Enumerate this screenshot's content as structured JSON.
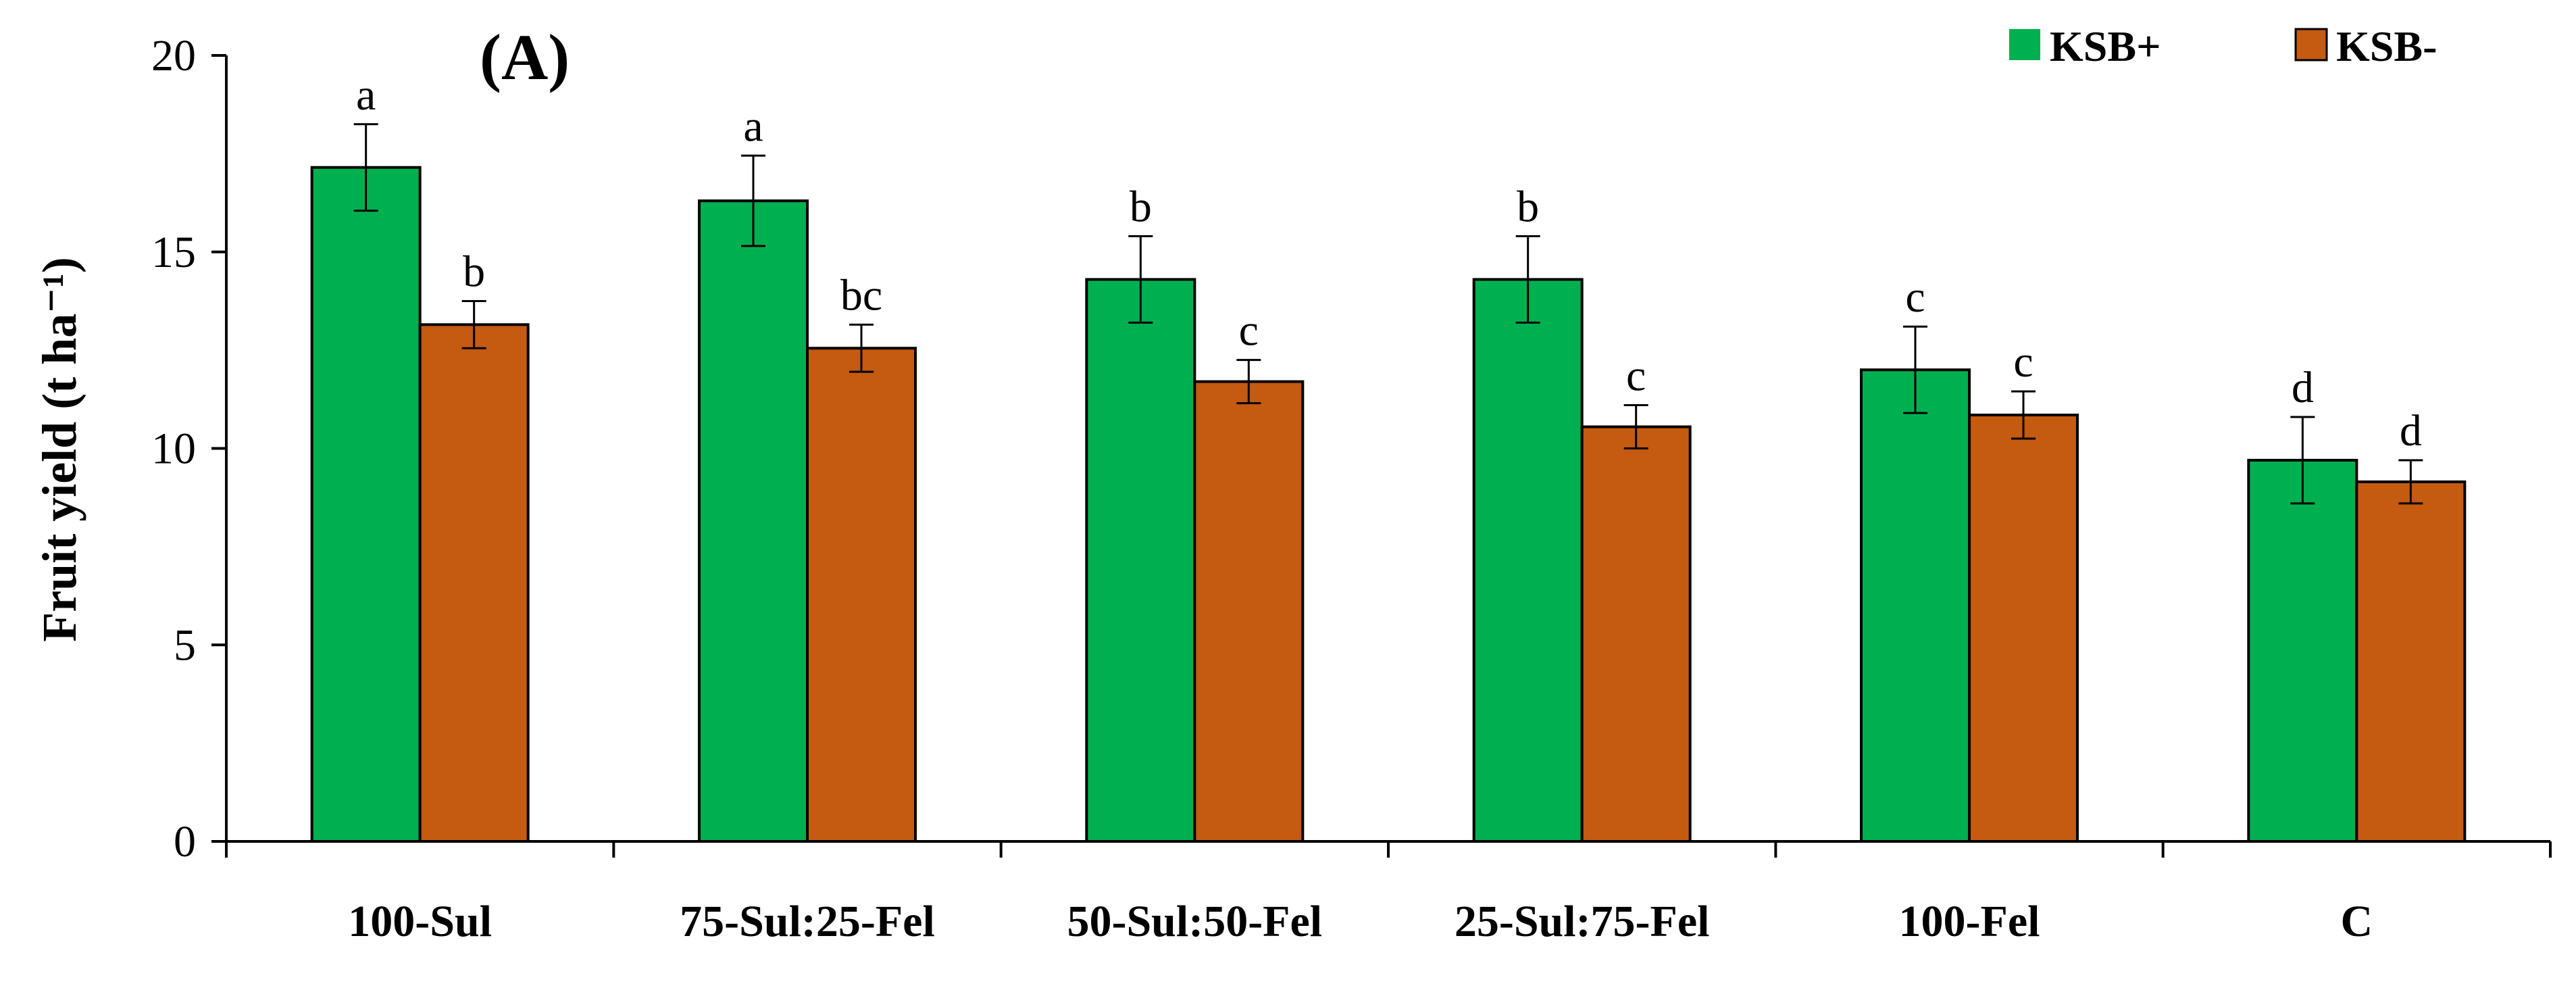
{
  "panel_label": "(A)",
  "chart_data": {
    "type": "bar",
    "title": "(A)",
    "xlabel": "",
    "ylabel": "Fruit yield (t ha⁻¹)",
    "ylim": [
      0,
      20
    ],
    "yticks": [
      0,
      5,
      10,
      15,
      20
    ],
    "categories": [
      "100-Sul",
      "75-Sul:25-Fel",
      "50-Sul:50-Fel",
      "25-Sul:75-Fel",
      "100-Fel",
      "C"
    ],
    "series": [
      {
        "name": "KSB+",
        "color": "#00B050",
        "values": [
          17.15,
          16.3,
          14.3,
          14.3,
          12.0,
          9.7
        ],
        "errors": [
          1.1,
          1.15,
          1.1,
          1.1,
          1.1,
          1.1
        ],
        "letters": [
          "a",
          "a",
          "b",
          "b",
          "c",
          "d"
        ]
      },
      {
        "name": "KSB-",
        "color": "#C55A11",
        "values": [
          13.15,
          12.55,
          11.7,
          10.55,
          10.85,
          9.15
        ],
        "errors": [
          0.6,
          0.6,
          0.55,
          0.55,
          0.6,
          0.55
        ],
        "letters": [
          "b",
          "bc",
          "c",
          "c",
          "c",
          "d"
        ]
      }
    ],
    "legend": {
      "position": "top-right",
      "entries": [
        "KSB+",
        "KSB-"
      ]
    },
    "grid": false
  }
}
